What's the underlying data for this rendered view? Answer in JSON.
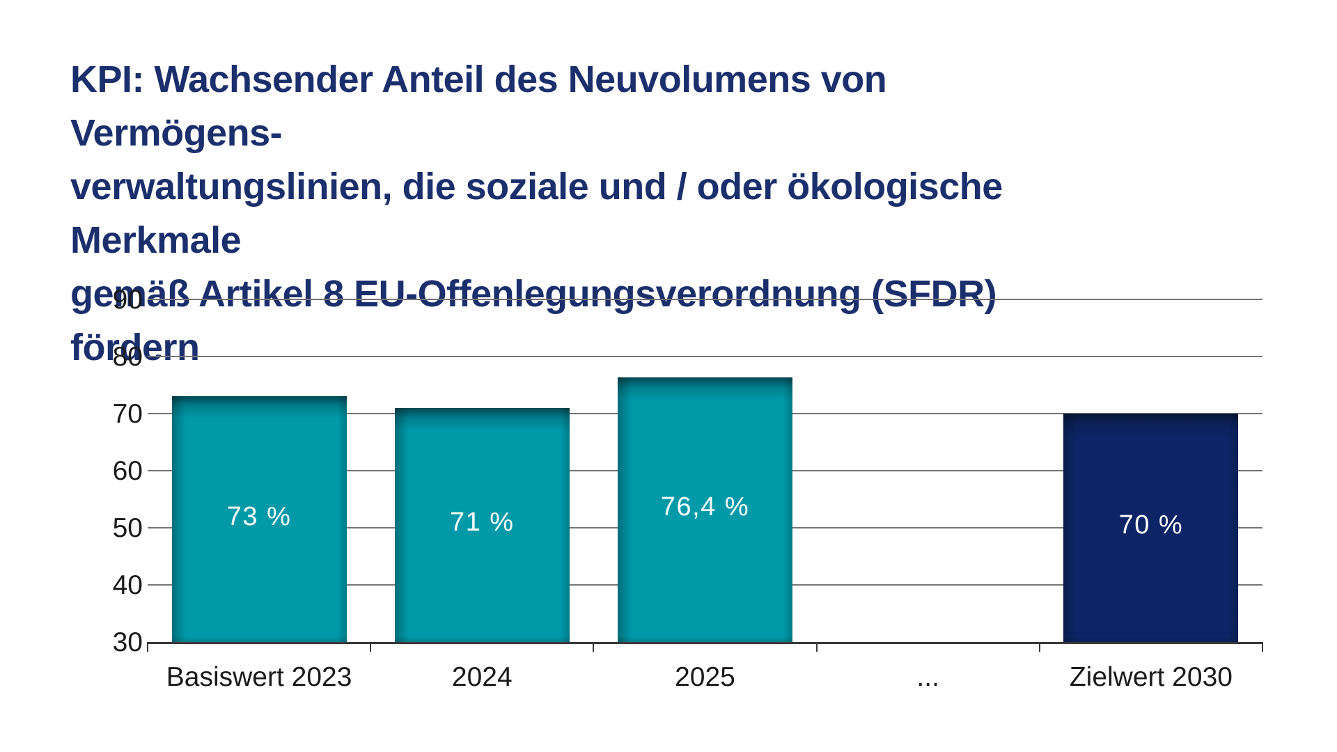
{
  "page": {
    "background": "#ffffff"
  },
  "title": {
    "lines": [
      "KPI: Wachsender Anteil des Neuvolumens von Vermögens-",
      "verwaltungslinien, die soziale und / oder ökologische Merkmale",
      "gemäß Artikel 8 EU-Offenlegungsverordnung (SFDR) fördern"
    ],
    "color": "#1b2f6d"
  },
  "chart_data": {
    "type": "bar",
    "title": "KPI: Wachsender Anteil des Neuvolumens von Vermögensverwaltungslinien, die soziale und / oder ökologische Merkmale gemäß Artikel 8 EU-Offenlegungsverordnung (SFDR) fördern",
    "categories": [
      "Basiswert 2023",
      "2024",
      "2025",
      "...",
      "Zielwert 2030"
    ],
    "values": [
      73,
      71,
      76.4,
      null,
      70
    ],
    "value_labels": [
      "73 %",
      "71 %",
      "76,4 %",
      "",
      "70 %"
    ],
    "bar_colors": [
      "#0099a8",
      "#0099a8",
      "#0099a8",
      null,
      "#0d2566"
    ],
    "xlabel": "",
    "ylabel": "",
    "ylim": [
      30,
      90
    ],
    "yticks": [
      30,
      40,
      50,
      60,
      70,
      80,
      90
    ],
    "grid": true,
    "legend_position": "none",
    "unit": "%"
  },
  "colors": {
    "teal_bar": "#0099a8",
    "navy_bar": "#0d2566",
    "title_text": "#1b2f6d",
    "gridline": "#757575",
    "axis": "#3a3a3a",
    "tick_label": "#1a1a1a",
    "bar_label": "#ffffff",
    "background": "#ffffff"
  }
}
